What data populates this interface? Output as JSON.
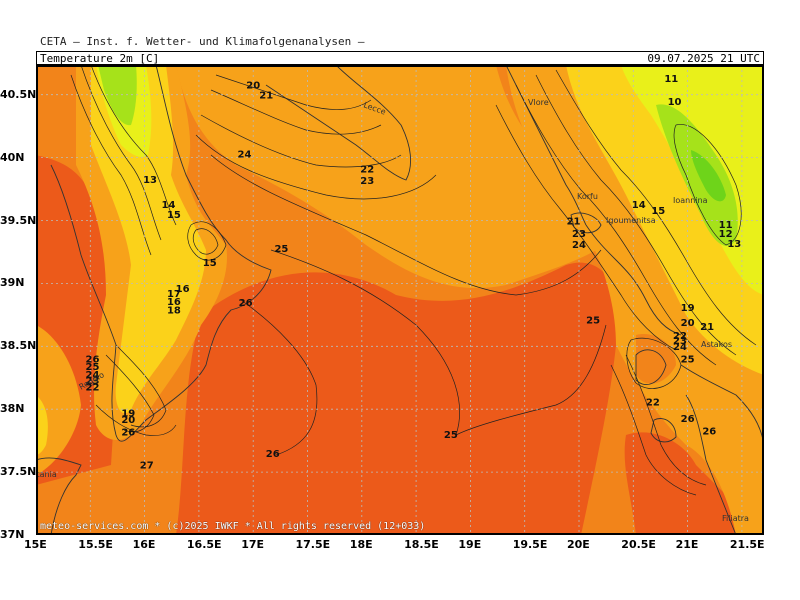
{
  "header": {
    "organization": "CETA — Inst. f. Wetter- und Klimafolgenanalysen —",
    "variable": "Temperature 2m [C]",
    "datetime": "09.07.2025 21 UTC"
  },
  "footer": {
    "copyright": "meteo-services.com * (c)2025 IWKF * All rights reserved (12+033)"
  },
  "colors": {
    "hot": "#ec5a1a",
    "warm": "#f2841a",
    "mild": "#f7a21a",
    "cool": "#fbd21a",
    "cold": "#e9f01a",
    "colder": "#a6e21a",
    "coldest": "#6ed41a",
    "contour": "#222222",
    "grid": "#bbbbbb"
  },
  "axes": {
    "lon_labels": [
      "15E",
      "15.5E",
      "16E",
      "16.5E",
      "17E",
      "17.5E",
      "18E",
      "18.5E",
      "19E",
      "19.5E",
      "20E",
      "20.5E",
      "21E",
      "21.5E"
    ],
    "lat_labels": [
      "40.5N",
      "40N",
      "39.5N",
      "39N",
      "38.5N",
      "38N",
      "37.5N",
      "37N"
    ]
  },
  "places": [
    "Lecce",
    "Vlore",
    "Korfu",
    "Igoumenitsa",
    "Ioannina",
    "Astakos",
    "Reggio",
    "Catania",
    "Filiatra"
  ],
  "contour_labels": [
    {
      "text": "20",
      "lon": 17.0,
      "lat": 40.55
    },
    {
      "text": "21",
      "lon": 17.12,
      "lat": 40.47
    },
    {
      "text": "24",
      "lon": 16.92,
      "lat": 40.0
    },
    {
      "text": "22",
      "lon": 18.05,
      "lat": 39.88
    },
    {
      "text": "23",
      "lon": 18.05,
      "lat": 39.79
    },
    {
      "text": "13",
      "lon": 16.05,
      "lat": 39.8
    },
    {
      "text": "14",
      "lon": 16.22,
      "lat": 39.6
    },
    {
      "text": "15",
      "lon": 16.27,
      "lat": 39.52
    },
    {
      "text": "15",
      "lon": 16.6,
      "lat": 39.14
    },
    {
      "text": "25",
      "lon": 17.26,
      "lat": 39.25
    },
    {
      "text": "16",
      "lon": 16.35,
      "lat": 38.93
    },
    {
      "text": "17",
      "lon": 16.27,
      "lat": 38.89
    },
    {
      "text": "16",
      "lon": 16.27,
      "lat": 38.83
    },
    {
      "text": "18",
      "lon": 16.27,
      "lat": 38.76
    },
    {
      "text": "26",
      "lon": 16.93,
      "lat": 38.82
    },
    {
      "text": "26",
      "lon": 15.52,
      "lat": 38.37
    },
    {
      "text": "25",
      "lon": 15.52,
      "lat": 38.31
    },
    {
      "text": "24",
      "lon": 15.52,
      "lat": 38.25
    },
    {
      "text": "23",
      "lon": 15.52,
      "lat": 38.2
    },
    {
      "text": "22",
      "lon": 15.52,
      "lat": 38.15
    },
    {
      "text": "19",
      "lon": 15.85,
      "lat": 37.94
    },
    {
      "text": "20",
      "lon": 15.85,
      "lat": 37.89
    },
    {
      "text": "26",
      "lon": 15.85,
      "lat": 37.79
    },
    {
      "text": "27",
      "lon": 16.02,
      "lat": 37.53
    },
    {
      "text": "26",
      "lon": 17.18,
      "lat": 37.62
    },
    {
      "text": "25",
      "lon": 18.82,
      "lat": 37.77
    },
    {
      "text": "11",
      "lon": 20.85,
      "lat": 40.6
    },
    {
      "text": "10",
      "lon": 20.88,
      "lat": 40.42
    },
    {
      "text": "14",
      "lon": 20.55,
      "lat": 39.6
    },
    {
      "text": "15",
      "lon": 20.73,
      "lat": 39.55
    },
    {
      "text": "21",
      "lon": 19.95,
      "lat": 39.47
    },
    {
      "text": "23",
      "lon": 20.0,
      "lat": 39.37
    },
    {
      "text": "24",
      "lon": 20.0,
      "lat": 39.28
    },
    {
      "text": "11",
      "lon": 21.35,
      "lat": 39.44
    },
    {
      "text": "12",
      "lon": 21.35,
      "lat": 39.37
    },
    {
      "text": "13",
      "lon": 21.43,
      "lat": 39.29
    },
    {
      "text": "19",
      "lon": 21.0,
      "lat": 38.78
    },
    {
      "text": "20",
      "lon": 21.0,
      "lat": 38.66
    },
    {
      "text": "21",
      "lon": 21.18,
      "lat": 38.63
    },
    {
      "text": "25",
      "lon": 20.13,
      "lat": 38.68
    },
    {
      "text": "22",
      "lon": 20.93,
      "lat": 38.56
    },
    {
      "text": "23",
      "lon": 20.93,
      "lat": 38.52
    },
    {
      "text": "24",
      "lon": 20.93,
      "lat": 38.47
    },
    {
      "text": "25",
      "lon": 21.0,
      "lat": 38.37
    },
    {
      "text": "22",
      "lon": 20.68,
      "lat": 38.03
    },
    {
      "text": "26",
      "lon": 21.0,
      "lat": 37.9
    },
    {
      "text": "26",
      "lon": 21.2,
      "lat": 37.8
    }
  ]
}
